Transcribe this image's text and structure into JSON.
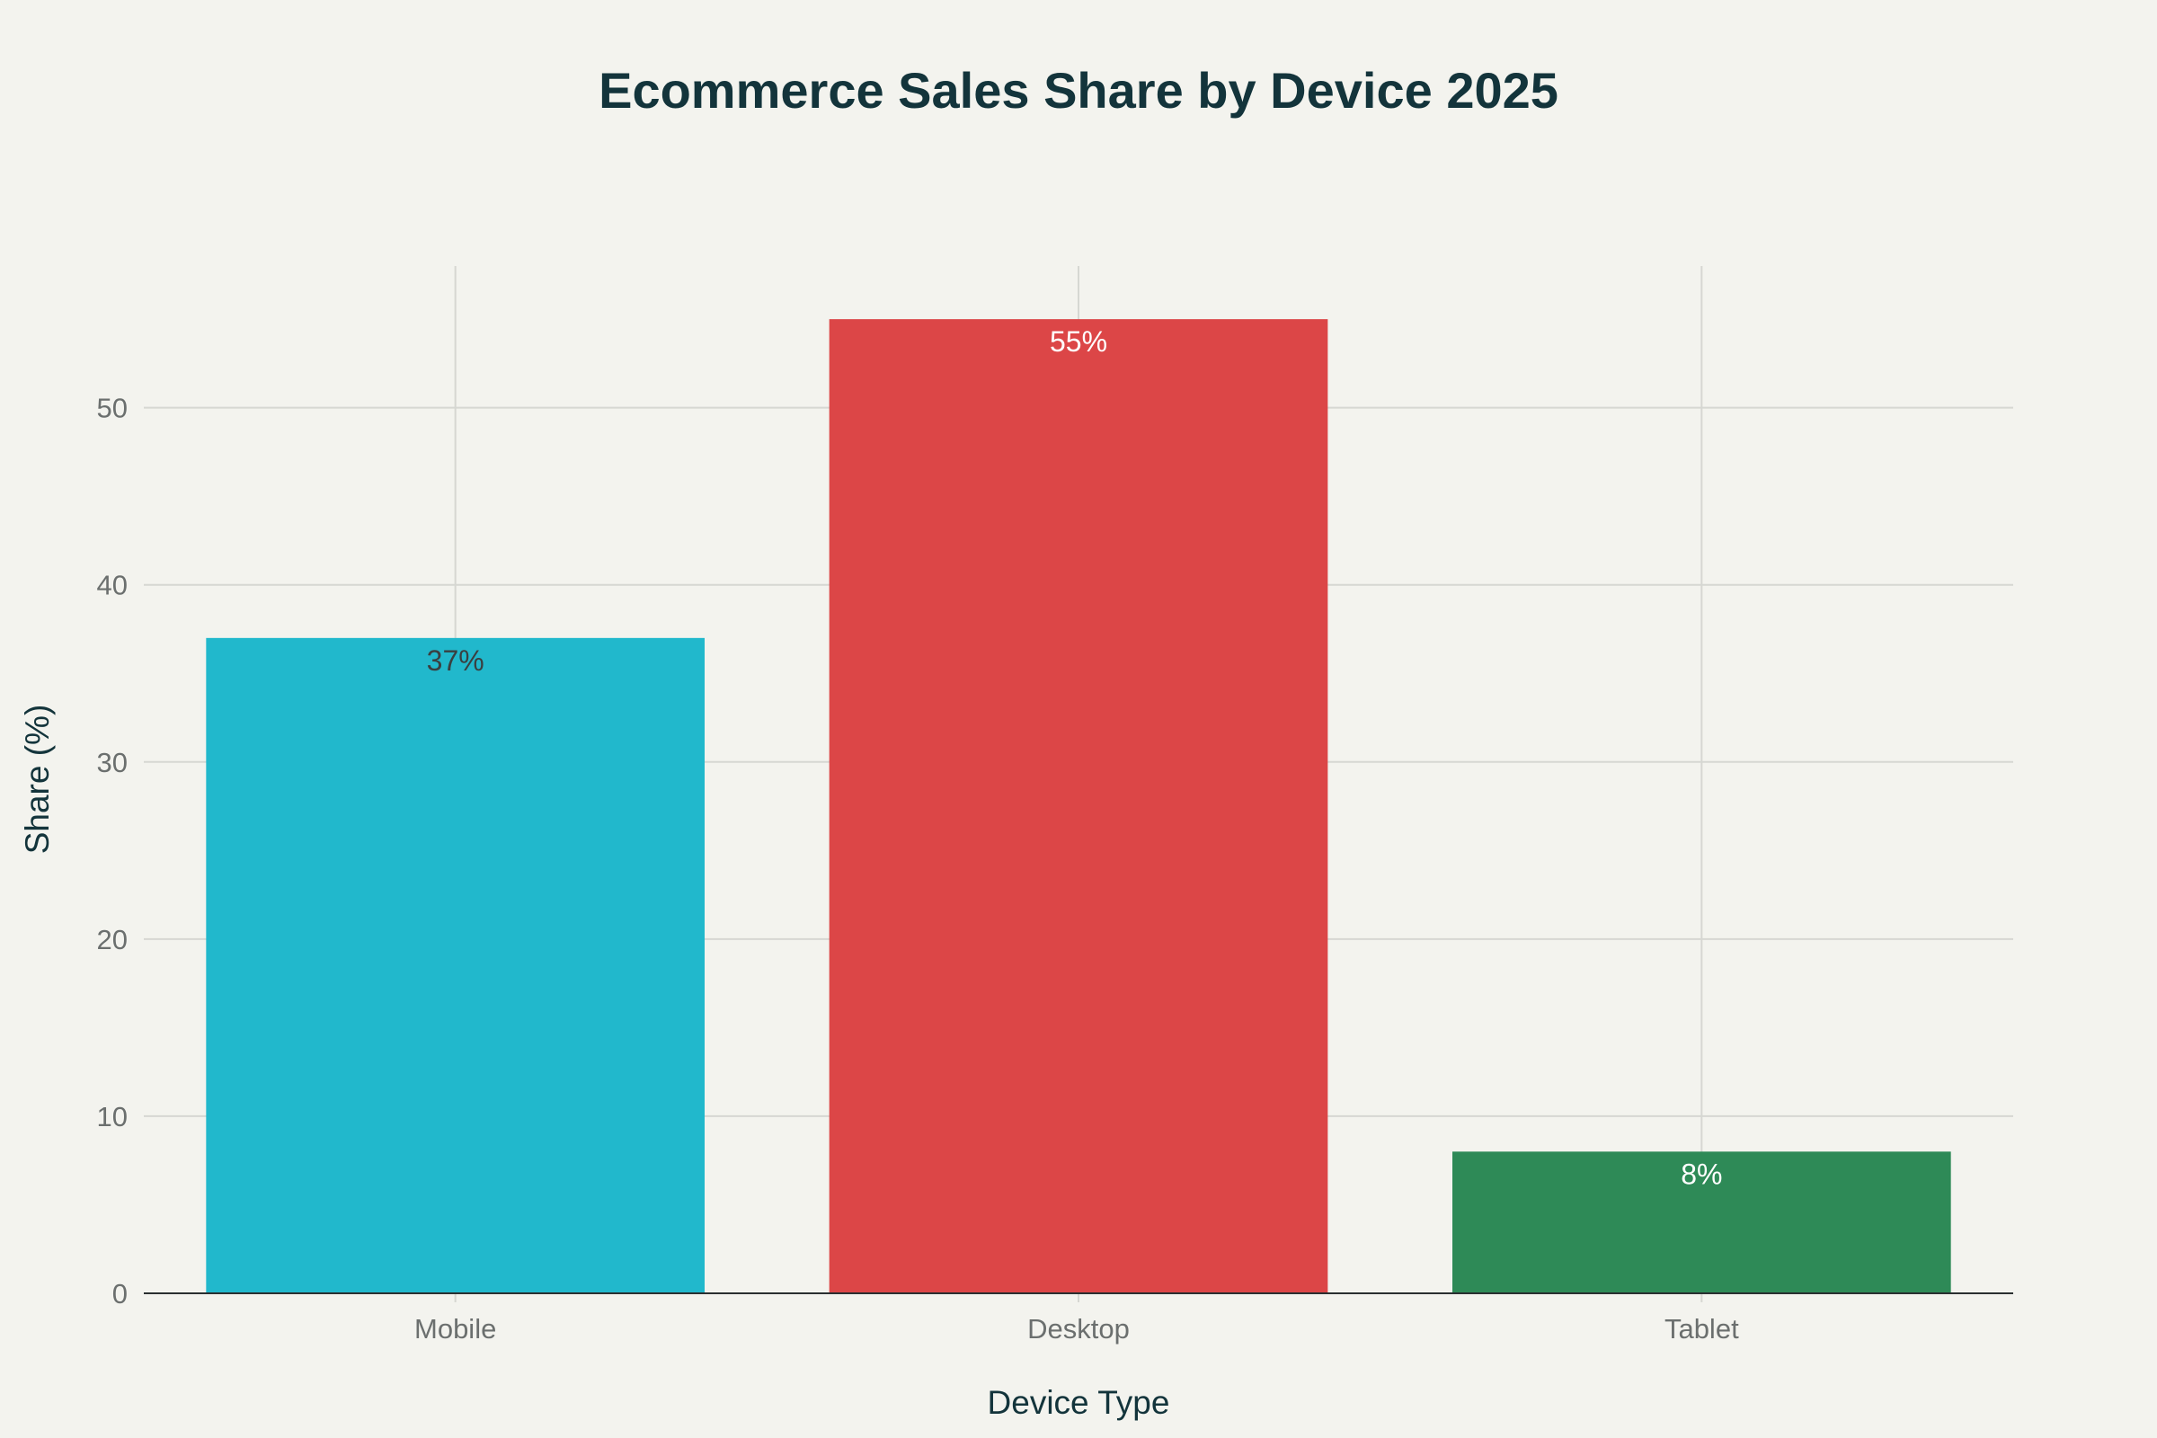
{
  "chart_data": {
    "type": "bar",
    "title": "Ecommerce Sales Share by Device 2025",
    "xlabel": "Device Type",
    "ylabel": "Share (%)",
    "categories": [
      "Mobile",
      "Desktop",
      "Tablet"
    ],
    "values": [
      37,
      55,
      8
    ],
    "data_labels": [
      "37%",
      "55%",
      "8%"
    ],
    "bar_colors": [
      "#21b8cc",
      "#dc4647",
      "#2e8a57"
    ],
    "data_label_colors": [
      "#3a3f40",
      "#ffffff",
      "#ffffff"
    ],
    "ylim": [
      0,
      58
    ],
    "yticks": [
      0,
      10,
      20,
      30,
      40,
      50
    ],
    "grid": true,
    "legend": "none"
  }
}
